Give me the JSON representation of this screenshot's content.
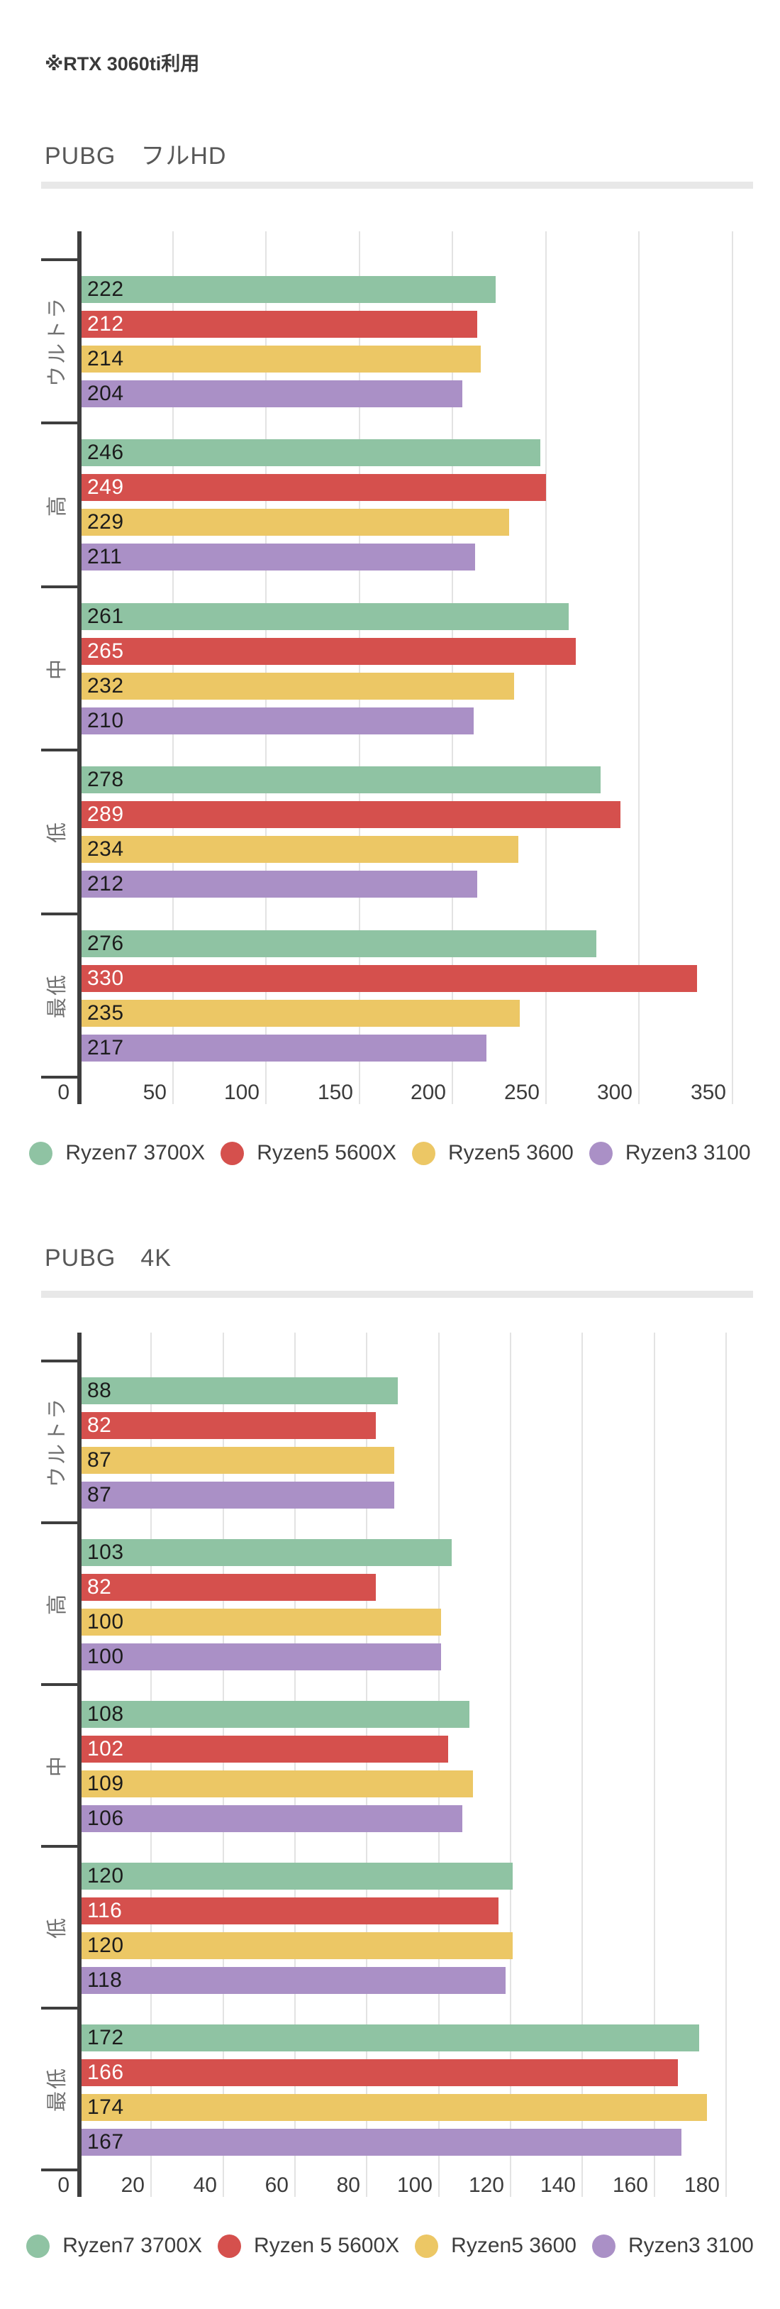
{
  "note": "※RTX 3060ti利用",
  "palette": {
    "axis": "#3e3e3e",
    "grid": "#e3e3e3",
    "divider": "#e8e8e8",
    "title_text": "#585858",
    "category_text": "#717171",
    "axis_label_text": "#3c3c3c",
    "legend_text": "#3d3d3d"
  },
  "chart_data": [
    {
      "type": "bar",
      "orientation": "horizontal-grouped",
      "title": "PUBG　フルHD",
      "categories": [
        "ウルトラ",
        "高",
        "中",
        "低",
        "最低"
      ],
      "series": [
        {
          "name": "Ryzen7 3700X",
          "color": "#8fc3a3",
          "label_color": "#1c1c1c",
          "values": [
            222,
            246,
            261,
            278,
            276
          ]
        },
        {
          "name": "Ryzen5 5600X",
          "color": "#d5504d",
          "label_color": "#ffffff",
          "values": [
            212,
            249,
            265,
            289,
            330
          ]
        },
        {
          "name": "Ryzen5 3600",
          "color": "#ecc765",
          "label_color": "#1c1c1c",
          "values": [
            214,
            229,
            232,
            234,
            235
          ]
        },
        {
          "name": "Ryzen3 3100",
          "color": "#aa90c6",
          "label_color": "#1c1c1c",
          "values": [
            204,
            211,
            210,
            212,
            217
          ]
        }
      ],
      "xlim": [
        0,
        350
      ],
      "xticks": [
        0,
        50,
        100,
        150,
        200,
        250,
        300,
        350
      ],
      "grid": true,
      "legend_position": "bottom",
      "legend": [
        "Ryzen7 3700X",
        "Ryzen5 5600X",
        "Ryzen5 3600",
        "Ryzen3 3100"
      ]
    },
    {
      "type": "bar",
      "orientation": "horizontal-grouped",
      "title": "PUBG　4K",
      "categories": [
        "ウルトラ",
        "高",
        "中",
        "低",
        "最低"
      ],
      "series": [
        {
          "name": "Ryzen7 3700X",
          "color": "#8fc3a3",
          "label_color": "#1c1c1c",
          "values": [
            88,
            103,
            108,
            120,
            172
          ]
        },
        {
          "name": "Ryzen 5 5600X",
          "color": "#d5504d",
          "label_color": "#ffffff",
          "values": [
            82,
            82,
            102,
            116,
            166
          ]
        },
        {
          "name": "Ryzen5 3600",
          "color": "#ecc765",
          "label_color": "#1c1c1c",
          "values": [
            87,
            100,
            109,
            120,
            174
          ]
        },
        {
          "name": "Ryzen3 3100",
          "color": "#aa90c6",
          "label_color": "#1c1c1c",
          "values": [
            87,
            100,
            106,
            118,
            167
          ]
        }
      ],
      "xlim": [
        0,
        180
      ],
      "xticks": [
        0,
        20,
        40,
        60,
        80,
        100,
        120,
        140,
        160,
        180
      ],
      "grid": true,
      "legend_position": "bottom",
      "legend": [
        "Ryzen7 3700X",
        "Ryzen 5 5600X",
        "Ryzen5 3600",
        "Ryzen3 3100"
      ]
    }
  ]
}
